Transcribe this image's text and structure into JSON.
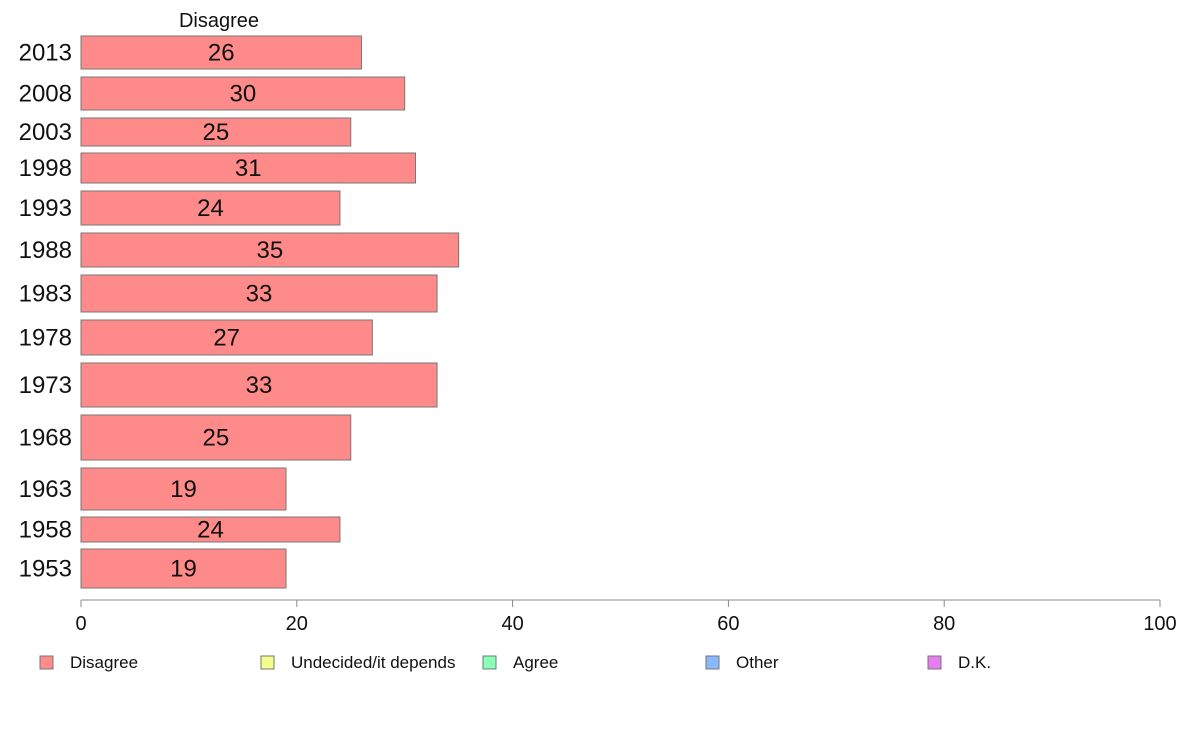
{
  "chart_data": {
    "type": "bar",
    "orientation": "horizontal",
    "column_header": "Disagree",
    "categories": [
      "2013",
      "2008",
      "2003",
      "1998",
      "1993",
      "1988",
      "1983",
      "1978",
      "1973",
      "1968",
      "1963",
      "1958",
      "1953"
    ],
    "series": [
      {
        "name": "Disagree",
        "color": "#ff8a8a",
        "values": [
          26,
          30,
          25,
          31,
          24,
          35,
          33,
          27,
          33,
          25,
          19,
          24,
          19
        ]
      }
    ],
    "xlim": [
      0,
      100
    ],
    "xticks": [
      0,
      20,
      40,
      60,
      80,
      100
    ],
    "grid": false,
    "legend_position": "bottom",
    "legend": [
      {
        "label": "Disagree",
        "color": "#ff8a8a"
      },
      {
        "label": "Undecided/it depends",
        "color": "#f2ff8a"
      },
      {
        "label": "Agree",
        "color": "#8affb8"
      },
      {
        "label": "Other",
        "color": "#8ab8ff"
      },
      {
        "label": "D.K.",
        "color": "#e67ef2"
      }
    ]
  }
}
